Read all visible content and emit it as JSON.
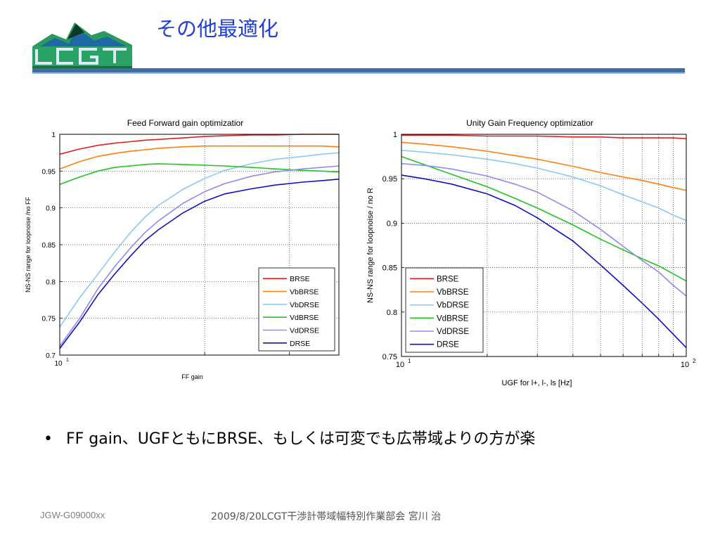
{
  "slide": {
    "title": "その他最適化",
    "logo_text": "LCGT",
    "bullet_symbol": "•",
    "bullet": "FF gain、UGFともにBRSE、もしくは可変でも広帯域よりの方が楽",
    "footer_left": "JGW-G09000xx",
    "footer_center": "2009/8/20LCGT干渉計帯域幅特別作業部会 宮川 治"
  },
  "colors": {
    "title": "#1f3fd6",
    "BRSE": "#e02020",
    "VbBRSE": "#ff7f0e",
    "VbDRSE": "#8ec8f2",
    "VdBRSE": "#22c422",
    "VdDRSE": "#8c8cf0",
    "DRSE": "#1010c0"
  },
  "chart_data": [
    {
      "type": "line",
      "title": "Feed Forward gain optimizatior",
      "xlabel": "FF gain",
      "ylabel": "NS-NS range for loopnoise /no FF",
      "xscale": "log",
      "xlim": [
        10,
        38
      ],
      "ylim": [
        0.7,
        1
      ],
      "yticks": [
        "0.7",
        "0.75",
        "0.8",
        "0.85",
        "0.9",
        "0.95",
        "1"
      ],
      "xtick_base": "10",
      "xtick_exp": "1",
      "grid": true,
      "legend_position": "lower-right",
      "x": [
        10,
        11,
        12,
        13,
        14,
        15,
        16,
        18,
        20,
        22,
        25,
        28,
        32,
        35,
        38
      ],
      "series": [
        {
          "name": "BRSE",
          "values": [
            0.973,
            0.98,
            0.985,
            0.988,
            0.99,
            0.992,
            0.993,
            0.995,
            0.997,
            0.998,
            0.999,
            0.999,
            1.0,
            1.0,
            1.0
          ]
        },
        {
          "name": "VbBRSE",
          "values": [
            0.953,
            0.963,
            0.97,
            0.974,
            0.977,
            0.979,
            0.981,
            0.983,
            0.984,
            0.984,
            0.984,
            0.984,
            0.984,
            0.984,
            0.983
          ]
        },
        {
          "name": "VbDRSE",
          "values": [
            0.738,
            0.778,
            0.81,
            0.84,
            0.866,
            0.887,
            0.903,
            0.925,
            0.94,
            0.951,
            0.96,
            0.966,
            0.97,
            0.973,
            0.975
          ]
        },
        {
          "name": "VdBRSE",
          "values": [
            0.932,
            0.942,
            0.95,
            0.955,
            0.957,
            0.959,
            0.96,
            0.959,
            0.958,
            0.957,
            0.955,
            0.953,
            0.951,
            0.95,
            0.949
          ]
        },
        {
          "name": "VdDRSE",
          "values": [
            0.712,
            0.75,
            0.79,
            0.82,
            0.845,
            0.866,
            0.882,
            0.906,
            0.922,
            0.933,
            0.943,
            0.949,
            0.953,
            0.955,
            0.957
          ]
        },
        {
          "name": "DRSE",
          "values": [
            0.709,
            0.745,
            0.782,
            0.81,
            0.834,
            0.855,
            0.87,
            0.893,
            0.909,
            0.919,
            0.926,
            0.931,
            0.935,
            0.937,
            0.939
          ]
        }
      ]
    },
    {
      "type": "line",
      "title": "Unity Gain Frequency optimizatior",
      "xlabel": "UGF for l+, l-, ls [Hz]",
      "ylabel": "NS-NS range for loopnoise / no R",
      "xscale": "log",
      "xlim": [
        10,
        100
      ],
      "ylim": [
        0.75,
        1
      ],
      "yticks": [
        "0.75",
        "0.8",
        "0.85",
        "0.9",
        "0.95",
        "1"
      ],
      "xtick_base": "10",
      "xtick_exps": [
        "1",
        "2"
      ],
      "grid": true,
      "legend_position": "lower-left",
      "x": [
        10,
        12,
        15,
        20,
        25,
        30,
        40,
        50,
        60,
        70,
        80,
        90,
        100
      ],
      "series": [
        {
          "name": "BRSE",
          "values": [
            0.999,
            0.999,
            0.999,
            0.998,
            0.998,
            0.998,
            0.997,
            0.997,
            0.996,
            0.996,
            0.996,
            0.996,
            0.995
          ]
        },
        {
          "name": "VbBRSE",
          "values": [
            0.991,
            0.989,
            0.986,
            0.981,
            0.976,
            0.972,
            0.964,
            0.957,
            0.952,
            0.948,
            0.944,
            0.94,
            0.937
          ]
        },
        {
          "name": "VbDRSE",
          "values": [
            0.982,
            0.98,
            0.977,
            0.972,
            0.967,
            0.962,
            0.952,
            0.942,
            0.932,
            0.924,
            0.917,
            0.909,
            0.903
          ]
        },
        {
          "name": "VdBRSE",
          "values": [
            0.975,
            0.966,
            0.955,
            0.941,
            0.928,
            0.917,
            0.898,
            0.882,
            0.87,
            0.86,
            0.852,
            0.843,
            0.835
          ]
        },
        {
          "name": "VdDRSE",
          "values": [
            0.967,
            0.965,
            0.961,
            0.953,
            0.944,
            0.935,
            0.914,
            0.893,
            0.874,
            0.858,
            0.845,
            0.83,
            0.818
          ]
        },
        {
          "name": "DRSE",
          "values": [
            0.954,
            0.95,
            0.944,
            0.933,
            0.92,
            0.906,
            0.88,
            0.853,
            0.83,
            0.81,
            0.792,
            0.775,
            0.76
          ]
        }
      ]
    }
  ]
}
